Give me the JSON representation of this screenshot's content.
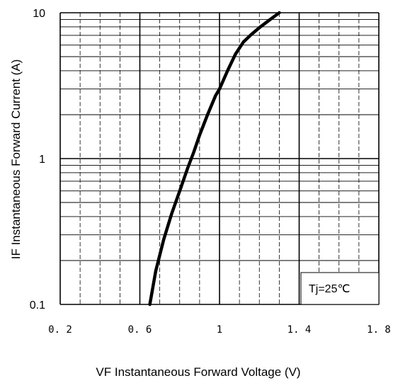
{
  "chart_data": {
    "type": "line",
    "xlabel": "VF  Instantaneous Forward Voltage (V)",
    "ylabel": "IF Instantaneous Forward Current (A)",
    "xlim": [
      0.2,
      1.8
    ],
    "ylim": [
      0.1,
      10
    ],
    "yscale": "log",
    "xticks": [
      0.2,
      0.6,
      1,
      1.4,
      1.8
    ],
    "xtick_labels": [
      "0. 2",
      "0. 6",
      "1",
      "1. 4",
      "1. 8"
    ],
    "yticks": [
      0.1,
      1,
      10
    ],
    "ytick_labels": [
      "0.1",
      "1",
      "10"
    ],
    "grid": true,
    "annotation": "Tj=25℃",
    "series": [
      {
        "x": [
          0.65,
          0.68,
          0.72,
          0.76,
          0.8,
          0.84,
          0.87,
          0.9,
          0.94,
          0.98,
          1.0,
          1.04,
          1.08,
          1.12,
          1.16,
          1.2,
          1.25,
          1.3
        ],
        "y": [
          0.1,
          0.17,
          0.28,
          0.42,
          0.6,
          0.86,
          1.1,
          1.45,
          2.0,
          2.7,
          3.0,
          4.0,
          5.2,
          6.3,
          7.1,
          7.9,
          8.9,
          10.0
        ]
      }
    ]
  }
}
